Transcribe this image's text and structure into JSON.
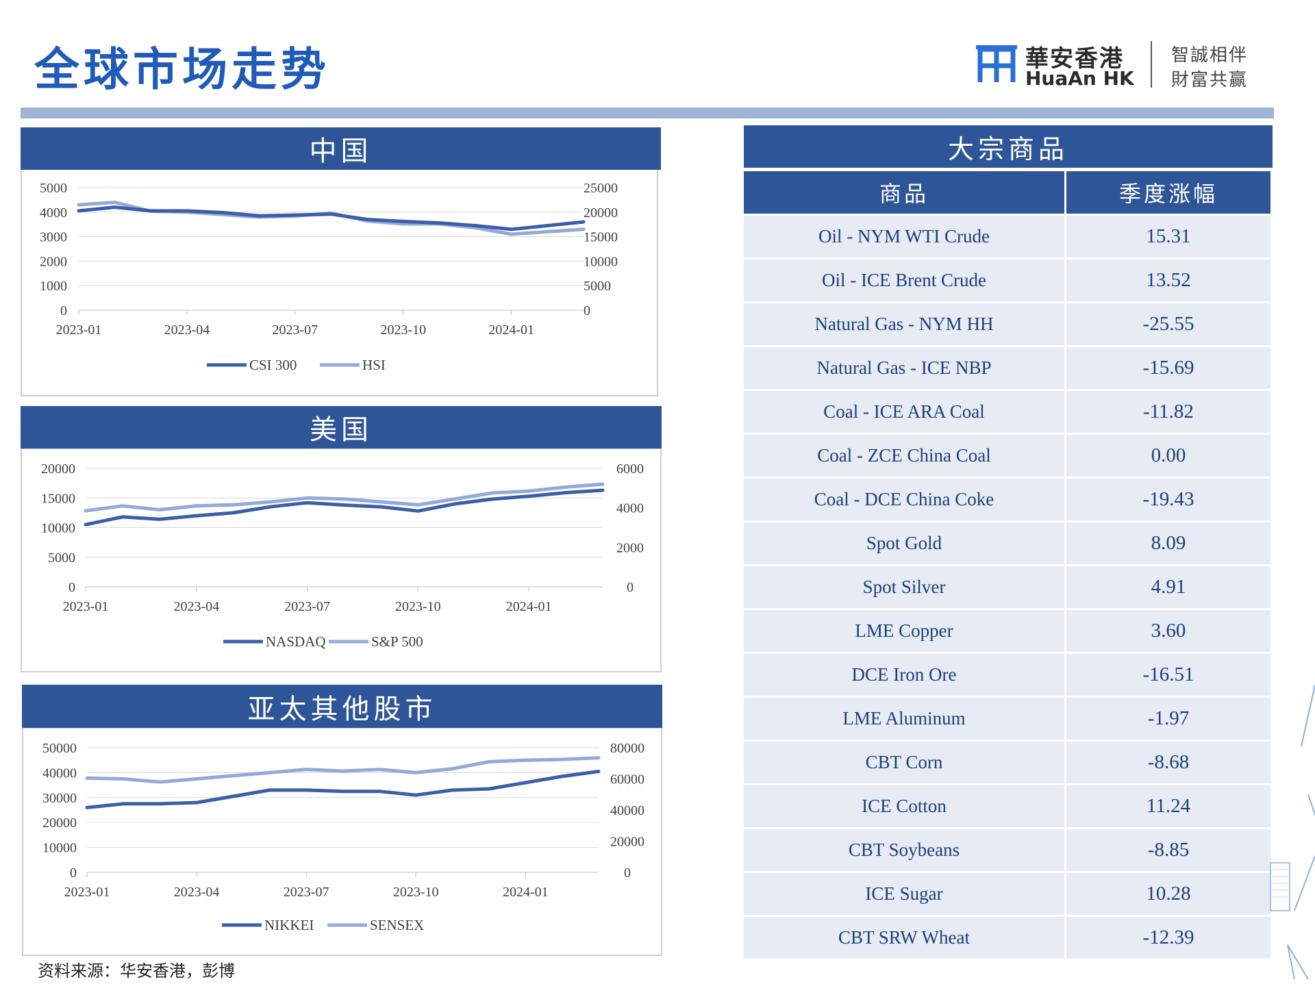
{
  "page": {
    "title": "全球市场走势",
    "source": "资料来源：华安香港，彭博"
  },
  "logo": {
    "cn": "華安香港",
    "en": "HuaAn HK",
    "slogan_line1": "智誠相伴",
    "slogan_line2": "財富共赢"
  },
  "colors": {
    "header": "#2e5597",
    "series_dark": "#3b5ea8",
    "series_light": "#93a9d8",
    "row_bg": "#e6ebf4"
  },
  "commodities": {
    "title": "大宗商品",
    "col_name": "商品",
    "col_change": "季度涨幅",
    "rows": [
      {
        "name": "Oil - NYM WTI Crude",
        "change": "15.31"
      },
      {
        "name": "Oil - ICE Brent Crude",
        "change": "13.52"
      },
      {
        "name": "Natural Gas - NYM HH",
        "change": "-25.55"
      },
      {
        "name": "Natural Gas - ICE NBP",
        "change": "-15.69"
      },
      {
        "name": "Coal - ICE ARA Coal",
        "change": "-11.82"
      },
      {
        "name": "Coal - ZCE China Coal",
        "change": "0.00"
      },
      {
        "name": "Coal - DCE China Coke",
        "change": "-19.43"
      },
      {
        "name": "Spot Gold",
        "change": "8.09"
      },
      {
        "name": "Spot Silver",
        "change": "4.91"
      },
      {
        "name": "LME Copper",
        "change": "3.60"
      },
      {
        "name": "DCE Iron Ore",
        "change": "-16.51"
      },
      {
        "name": "LME Aluminum",
        "change": "-1.97"
      },
      {
        "name": "CBT Corn",
        "change": "-8.68"
      },
      {
        "name": "ICE Cotton",
        "change": "11.24"
      },
      {
        "name": "CBT Soybeans",
        "change": "-8.85"
      },
      {
        "name": "ICE Sugar",
        "change": "10.28"
      },
      {
        "name": "CBT SRW Wheat",
        "change": "-12.39"
      }
    ]
  },
  "chart_data": [
    {
      "type": "line",
      "title": "中国",
      "x": [
        "2023-01",
        "2023-02",
        "2023-03",
        "2023-04",
        "2023-05",
        "2023-06",
        "2023-07",
        "2023-08",
        "2023-09",
        "2023-10",
        "2023-11",
        "2023-12",
        "2024-01",
        "2024-02",
        "2024-03"
      ],
      "xticks": [
        "2023-01",
        "2023-04",
        "2023-07",
        "2023-10",
        "2024-01"
      ],
      "yticks_left": [
        "5000",
        "4000",
        "3000",
        "2000",
        "1000",
        "0"
      ],
      "yticks_right": [
        "25000",
        "20000",
        "15000",
        "10000",
        "5000",
        "0"
      ],
      "ylim_left": [
        0,
        5000
      ],
      "ylim_right": [
        0,
        25000
      ],
      "legend_position": "bottom",
      "series": [
        {
          "name": "CSI 300",
          "axis": "left",
          "values": [
            4050,
            4200,
            4050,
            4050,
            3980,
            3850,
            3880,
            3920,
            3700,
            3620,
            3560,
            3450,
            3300,
            3450,
            3600
          ]
        },
        {
          "name": "HSI",
          "axis": "right",
          "values": [
            21500,
            22000,
            20200,
            20000,
            19500,
            19000,
            19200,
            19800,
            18200,
            17600,
            17600,
            16800,
            15500,
            16000,
            16500
          ]
        }
      ]
    },
    {
      "type": "line",
      "title": "美国",
      "x": [
        "2023-01",
        "2023-02",
        "2023-03",
        "2023-04",
        "2023-05",
        "2023-06",
        "2023-07",
        "2023-08",
        "2023-09",
        "2023-10",
        "2023-11",
        "2023-12",
        "2024-01",
        "2024-02",
        "2024-03"
      ],
      "xticks": [
        "2023-01",
        "2023-04",
        "2023-07",
        "2023-10",
        "2024-01"
      ],
      "yticks_left": [
        "20000",
        "15000",
        "10000",
        "5000",
        "0"
      ],
      "yticks_right": [
        "6000",
        "4000",
        "2000",
        "0"
      ],
      "ylim_left": [
        0,
        20000
      ],
      "ylim_right": [
        0,
        6000
      ],
      "legend_position": "bottom",
      "series": [
        {
          "name": "NASDAQ",
          "axis": "left",
          "values": [
            10500,
            11800,
            11400,
            12000,
            12500,
            13500,
            14200,
            13800,
            13500,
            12800,
            14000,
            14800,
            15300,
            15900,
            16300
          ]
        },
        {
          "name": "S&P 500",
          "axis": "right",
          "values": [
            3850,
            4100,
            3900,
            4100,
            4150,
            4300,
            4500,
            4450,
            4300,
            4150,
            4450,
            4750,
            4850,
            5050,
            5200
          ]
        }
      ]
    },
    {
      "type": "line",
      "title": "亚太其他股市",
      "x": [
        "2023-01",
        "2023-02",
        "2023-03",
        "2023-04",
        "2023-05",
        "2023-06",
        "2023-07",
        "2023-08",
        "2023-09",
        "2023-10",
        "2023-11",
        "2023-12",
        "2024-01",
        "2024-02",
        "2024-03"
      ],
      "xticks": [
        "2023-01",
        "2023-04",
        "2023-07",
        "2023-10",
        "2024-01"
      ],
      "yticks_left": [
        "50000",
        "40000",
        "30000",
        "20000",
        "10000",
        "0"
      ],
      "yticks_right": [
        "80000",
        "60000",
        "40000",
        "20000",
        "0"
      ],
      "ylim_left": [
        0,
        50000
      ],
      "ylim_right": [
        0,
        80000
      ],
      "legend_position": "bottom",
      "series": [
        {
          "name": "NIKKEI",
          "axis": "left",
          "values": [
            26000,
            27500,
            27500,
            28000,
            30500,
            33000,
            33000,
            32500,
            32500,
            31000,
            33000,
            33500,
            36000,
            38500,
            40500
          ]
        },
        {
          "name": "SENSEX",
          "axis": "right",
          "values": [
            60500,
            60000,
            58000,
            60000,
            62000,
            64000,
            66000,
            65000,
            66000,
            64000,
            66500,
            71000,
            72000,
            72500,
            73500
          ]
        }
      ]
    }
  ]
}
